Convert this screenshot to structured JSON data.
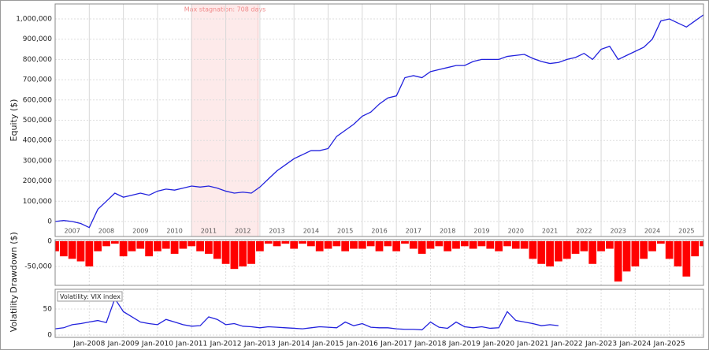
{
  "chart_data": [
    {
      "type": "line",
      "ylabel": "Equity ($)",
      "xlim": [
        2007,
        2026
      ],
      "ylim": [
        -74000,
        1074000
      ],
      "yticks": [
        0,
        {
          "value": 100000,
          "label": "100,000"
        },
        {
          "value": 200000,
          "label": "200,000"
        },
        {
          "value": 300000,
          "label": "300,000"
        },
        {
          "value": 400000,
          "label": "400,000"
        },
        {
          "value": 500000,
          "label": "500,000"
        },
        {
          "value": 600000,
          "label": "600,000"
        },
        {
          "value": 700000,
          "label": "700,000"
        },
        {
          "value": 800000,
          "label": "800,000"
        },
        {
          "value": 900000,
          "label": "900,000"
        },
        {
          "value": 1000000,
          "label": "1,000,000"
        }
      ],
      "xticks": [
        2007,
        2008,
        2009,
        2010,
        2011,
        2012,
        2013,
        2014,
        2015,
        2016,
        2017,
        2018,
        2019,
        2020,
        2021,
        2022,
        2023,
        2024,
        2025
      ],
      "highlight": {
        "label": "Max stagnation: 708 days",
        "xrange": [
          2011.0,
          2012.95
        ],
        "color": "#fdeaea"
      },
      "x": [
        2007,
        2007.25,
        2007.5,
        2007.75,
        2008,
        2008.25,
        2008.5,
        2008.75,
        2009,
        2009.25,
        2009.5,
        2009.75,
        2010,
        2010.25,
        2010.5,
        2010.75,
        2011,
        2011.25,
        2011.5,
        2011.75,
        2012,
        2012.25,
        2012.5,
        2012.75,
        2013,
        2013.25,
        2013.5,
        2013.75,
        2014,
        2014.25,
        2014.5,
        2014.75,
        2015,
        2015.25,
        2015.5,
        2015.75,
        2016,
        2016.25,
        2016.5,
        2016.75,
        2017,
        2017.25,
        2017.5,
        2017.75,
        2018,
        2018.25,
        2018.5,
        2018.75,
        2019,
        2019.25,
        2019.5,
        2019.75,
        2020,
        2020.25,
        2020.5,
        2020.75,
        2021,
        2021.25,
        2021.5,
        2021.75,
        2022,
        2022.25,
        2022.5,
        2022.75,
        2023,
        2023.25,
        2023.5,
        2023.75,
        2024,
        2024.25,
        2024.5,
        2024.75,
        2025,
        2025.25,
        2025.5,
        2025.75,
        2026
      ],
      "series": [
        {
          "color": "#2222dd",
          "values": [
            0,
            5000,
            0,
            -10000,
            -30000,
            60000,
            100000,
            140000,
            120000,
            130000,
            140000,
            130000,
            150000,
            160000,
            155000,
            165000,
            175000,
            170000,
            175000,
            165000,
            150000,
            140000,
            145000,
            140000,
            170000,
            210000,
            250000,
            280000,
            310000,
            330000,
            350000,
            350000,
            360000,
            420000,
            450000,
            480000,
            520000,
            540000,
            580000,
            610000,
            620000,
            710000,
            720000,
            710000,
            740000,
            750000,
            760000,
            770000,
            770000,
            790000,
            800000,
            800000,
            800000,
            815000,
            820000,
            825000,
            805000,
            790000,
            780000,
            785000,
            800000,
            810000,
            830000,
            800000,
            850000,
            865000,
            800000,
            820000,
            840000,
            860000,
            900000,
            990000,
            1000000,
            980000,
            960000,
            990000,
            1020000
          ]
        }
      ]
    },
    {
      "type": "bar",
      "ylabel": "Drawdown ($)",
      "xlim": [
        2007,
        2026
      ],
      "ylim": [
        -87500,
        3000
      ],
      "yticks": [
        0,
        {
          "value": -50000,
          "label": "-50,000"
        }
      ],
      "x": [
        2007,
        2007.25,
        2007.5,
        2007.75,
        2008,
        2008.25,
        2008.5,
        2008.75,
        2009,
        2009.25,
        2009.5,
        2009.75,
        2010,
        2010.25,
        2010.5,
        2010.75,
        2011,
        2011.25,
        2011.5,
        2011.75,
        2012,
        2012.25,
        2012.5,
        2012.75,
        2013,
        2013.25,
        2013.5,
        2013.75,
        2014,
        2014.25,
        2014.5,
        2014.75,
        2015,
        2015.25,
        2015.5,
        2015.75,
        2016,
        2016.25,
        2016.5,
        2016.75,
        2017,
        2017.25,
        2017.5,
        2017.75,
        2018,
        2018.25,
        2018.5,
        2018.75,
        2019,
        2019.25,
        2019.5,
        2019.75,
        2020,
        2020.25,
        2020.5,
        2020.75,
        2021,
        2021.25,
        2021.5,
        2021.75,
        2022,
        2022.25,
        2022.5,
        2022.75,
        2023,
        2023.25,
        2023.5,
        2023.75,
        2024,
        2024.25,
        2024.5,
        2024.75,
        2025,
        2025.25,
        2025.5,
        2025.75,
        2026
      ],
      "series": [
        {
          "color": "#ff0000",
          "values": [
            -20000,
            -30000,
            -35000,
            -40000,
            -50000,
            -20000,
            -10000,
            -5000,
            -30000,
            -20000,
            -15000,
            -30000,
            -20000,
            -15000,
            -25000,
            -15000,
            -10000,
            -20000,
            -25000,
            -35000,
            -45000,
            -55000,
            -50000,
            -45000,
            -20000,
            -5000,
            -10000,
            -5000,
            -15000,
            -5000,
            -10000,
            -20000,
            -15000,
            -10000,
            -20000,
            -15000,
            -15000,
            -10000,
            -20000,
            -10000,
            -20000,
            -5000,
            -15000,
            -25000,
            -15000,
            -10000,
            -20000,
            -15000,
            -10000,
            -15000,
            -10000,
            -15000,
            -20000,
            -10000,
            -15000,
            -15000,
            -35000,
            -45000,
            -50000,
            -40000,
            -35000,
            -25000,
            -20000,
            -45000,
            -20000,
            -15000,
            -80000,
            -60000,
            -50000,
            -35000,
            -20000,
            -5000,
            -35000,
            -50000,
            -70000,
            -30000,
            -10000
          ]
        }
      ]
    },
    {
      "type": "line",
      "ylabel": "Volatility",
      "legend": "Volatility: VIX index",
      "xlim": [
        2007,
        2026
      ],
      "ylim": [
        -4.5,
        88
      ],
      "yticks": [
        0,
        50
      ],
      "xticks": [
        {
          "value": 2008,
          "label": "Jan-2008"
        },
        {
          "value": 2009,
          "label": "Jan-2009"
        },
        {
          "value": 2010,
          "label": "Jan-2010"
        },
        {
          "value": 2011,
          "label": "Jan-2011"
        },
        {
          "value": 2012,
          "label": "Jan-2012"
        },
        {
          "value": 2013,
          "label": "Jan-2013"
        },
        {
          "value": 2014,
          "label": "Jan-2014"
        },
        {
          "value": 2015,
          "label": "Jan-2015"
        },
        {
          "value": 2016,
          "label": "Jan-2016"
        },
        {
          "value": 2017,
          "label": "Jan-2017"
        },
        {
          "value": 2018,
          "label": "Jan-2018"
        },
        {
          "value": 2019,
          "label": "Jan-2019"
        },
        {
          "value": 2020,
          "label": "Jan-2020"
        },
        {
          "value": 2021,
          "label": "Jan-2021"
        },
        {
          "value": 2022,
          "label": "Jan-2022"
        },
        {
          "value": 2023,
          "label": "Jan-2023"
        },
        {
          "value": 2024,
          "label": "Jan-2024"
        },
        {
          "value": 2025,
          "label": "Jan-2025"
        }
      ],
      "x": [
        2007,
        2007.25,
        2007.5,
        2007.75,
        2008,
        2008.25,
        2008.5,
        2008.75,
        2009,
        2009.25,
        2009.5,
        2009.75,
        2010,
        2010.25,
        2010.5,
        2010.75,
        2011,
        2011.25,
        2011.5,
        2011.75,
        2012,
        2012.25,
        2012.5,
        2012.75,
        2013,
        2013.25,
        2013.5,
        2013.75,
        2014,
        2014.25,
        2014.5,
        2014.75,
        2015,
        2015.25,
        2015.5,
        2015.75,
        2016,
        2016.25,
        2016.5,
        2016.75,
        2017,
        2017.25,
        2017.5,
        2017.75,
        2018,
        2018.25,
        2018.5,
        2018.75,
        2019,
        2019.25,
        2019.5,
        2019.75,
        2020,
        2020.25,
        2020.5,
        2020.75,
        2021,
        2021.25,
        2021.5,
        2021.75
      ],
      "series": [
        {
          "color": "#2222dd",
          "values": [
            12,
            14,
            20,
            22,
            25,
            28,
            24,
            70,
            45,
            35,
            25,
            22,
            20,
            30,
            25,
            20,
            17,
            18,
            35,
            30,
            20,
            22,
            17,
            16,
            14,
            16,
            15,
            14,
            13,
            12,
            14,
            16,
            15,
            14,
            25,
            18,
            22,
            15,
            14,
            14,
            12,
            11,
            11,
            10,
            25,
            15,
            13,
            25,
            16,
            14,
            16,
            13,
            14,
            45,
            28,
            25,
            22,
            18,
            20,
            18
          ]
        }
      ]
    }
  ]
}
